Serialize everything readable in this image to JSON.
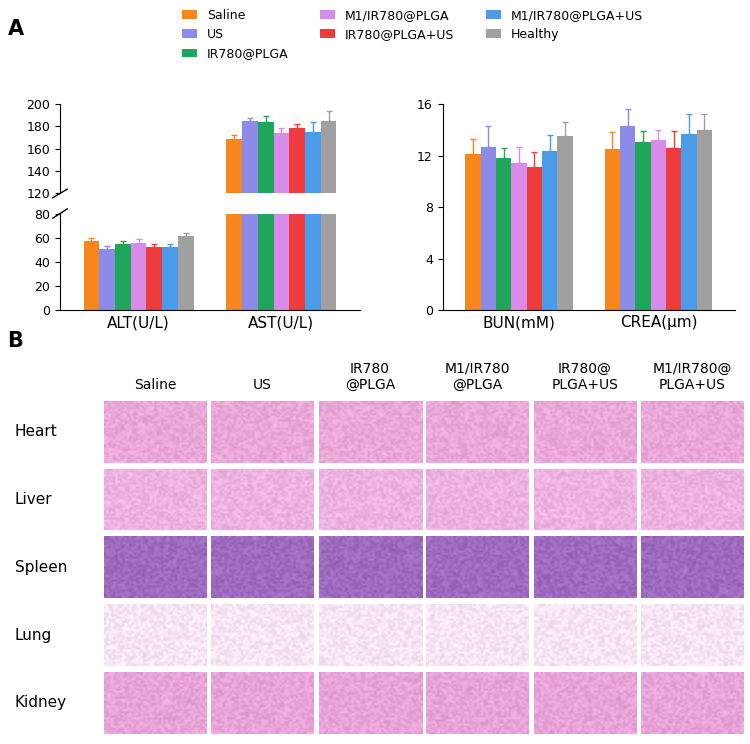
{
  "panel_labels": [
    "A",
    "B"
  ],
  "chart_data": [
    {
      "type": "bar",
      "categories": [
        "ALT(U/L)",
        "AST(U/L)"
      ],
      "series": [
        {
          "name": "Saline",
          "color": "#F7861C",
          "values": [
            57,
            169
          ],
          "errors": [
            2.5,
            3
          ]
        },
        {
          "name": "US",
          "color": "#8C8CE8",
          "values": [
            51,
            185
          ],
          "errors": [
            2.5,
            3
          ]
        },
        {
          "name": "IR780@PLGA",
          "color": "#1FA65A",
          "values": [
            55,
            184
          ],
          "errors": [
            2.5,
            5
          ]
        },
        {
          "name": "M1/IR780@PLGA",
          "color": "#D98BEA",
          "values": [
            56,
            174
          ],
          "errors": [
            3,
            5
          ]
        },
        {
          "name": "IR780@PLGA+US",
          "color": "#EE3B3B",
          "values": [
            52,
            179
          ],
          "errors": [
            3,
            3
          ]
        },
        {
          "name": "M1/IR780@PLGA+US",
          "color": "#4A9BEA",
          "values": [
            52,
            175
          ],
          "errors": [
            3,
            9
          ]
        },
        {
          "name": "Healthy",
          "color": "#A0A0A0",
          "values": [
            61,
            185
          ],
          "errors": [
            3,
            9
          ]
        }
      ],
      "ylim": [
        0,
        200
      ],
      "yticks": [
        0,
        20,
        40,
        60,
        80,
        120,
        140,
        160,
        180,
        200
      ],
      "legend": "upper center"
    },
    {
      "type": "bar",
      "categories": [
        "BUN(mM)",
        "CREA(μm)"
      ],
      "series": [
        {
          "name": "Saline",
          "color": "#F7861C",
          "values": [
            12.1,
            12.5
          ],
          "errors": [
            1.2,
            1.3
          ]
        },
        {
          "name": "US",
          "color": "#8C8CE8",
          "values": [
            12.7,
            14.3
          ],
          "errors": [
            1.6,
            1.3
          ]
        },
        {
          "name": "IR780@PLGA",
          "color": "#1FA65A",
          "values": [
            11.8,
            13.1
          ],
          "errors": [
            0.8,
            0.8
          ]
        },
        {
          "name": "M1/IR780@PLGA",
          "color": "#D98BEA",
          "values": [
            11.4,
            13.2
          ],
          "errors": [
            1.3,
            0.8
          ]
        },
        {
          "name": "IR780@PLGA+US",
          "color": "#EE3B3B",
          "values": [
            11.1,
            12.6
          ],
          "errors": [
            1.2,
            1.3
          ]
        },
        {
          "name": "M1/IR780@PLGA+US",
          "color": "#4A9BEA",
          "values": [
            12.4,
            13.7
          ],
          "errors": [
            1.2,
            1.5
          ]
        },
        {
          "name": "Healthy",
          "color": "#A0A0A0",
          "values": [
            13.5,
            14.0
          ],
          "errors": [
            1.1,
            1.2
          ]
        }
      ],
      "ylim": [
        0,
        16
      ],
      "yticks": [
        0,
        4,
        8,
        12,
        16
      ]
    }
  ],
  "histology": {
    "columns": [
      "Saline",
      "US",
      "IR780\n@PLGA",
      "M1/IR780\n@PLGA",
      "IR780@\nPLGA+US",
      "M1/IR780@\nPLGA+US"
    ],
    "rows": [
      "Heart",
      "Liver",
      "Spleen",
      "Lung",
      "Kidney"
    ]
  }
}
